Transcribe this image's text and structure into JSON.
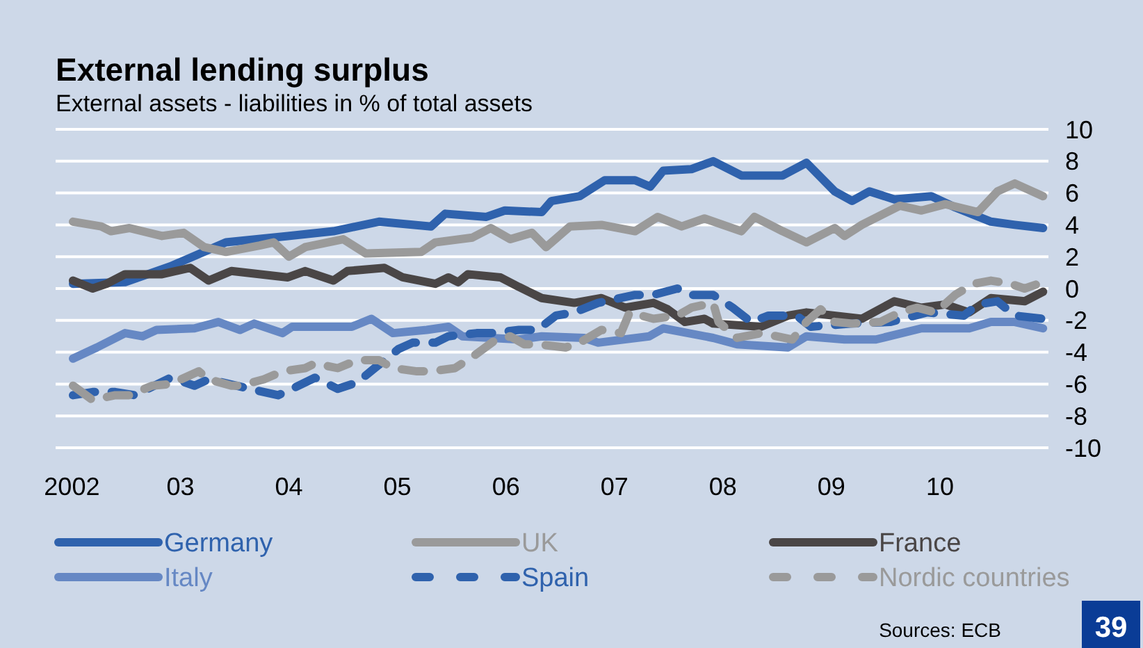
{
  "chart_data": {
    "type": "line",
    "title": "External lending surplus",
    "subtitle": "External assets - liabilities in % of total assets",
    "xlim": [
      2001.85,
      2011
    ],
    "xticks": [
      {
        "value": 2002,
        "label": "2002"
      },
      {
        "value": 2003,
        "label": "03"
      },
      {
        "value": 2004,
        "label": "04"
      },
      {
        "value": 2005,
        "label": "05"
      },
      {
        "value": 2006,
        "label": "06"
      },
      {
        "value": 2007,
        "label": "07"
      },
      {
        "value": 2008,
        "label": "08"
      },
      {
        "value": 2009,
        "label": "09"
      },
      {
        "value": 2010,
        "label": "10"
      }
    ],
    "ylim": [
      -10,
      10
    ],
    "yticks": [
      -10,
      -8,
      -6,
      -4,
      -2,
      0,
      2,
      4,
      6,
      8,
      10
    ],
    "grid": "y",
    "legend": "bottom",
    "marker": "none",
    "annotations": [
      "Sources: ECB",
      "39"
    ],
    "series": [
      {
        "name": "Germany",
        "color": "#2f62ad",
        "line_style": "solid",
        "x": [
          2002.01,
          2002.49,
          2002.91,
          2003.42,
          2003.99,
          2004.41,
          2004.83,
          2005.31,
          2005.44,
          2005.82,
          2005.99,
          2006.33,
          2006.42,
          2006.68,
          2006.91,
          2007.19,
          2007.33,
          2007.45,
          2007.71,
          2007.91,
          2008.17,
          2008.55,
          2008.77,
          2009.03,
          2009.19,
          2009.35,
          2009.58,
          2009.92,
          2010.14,
          2010.47,
          2010.69,
          2010.95
        ],
        "values": [
          0.3,
          0.4,
          1.4,
          2.9,
          3.3,
          3.6,
          4.2,
          3.9,
          4.7,
          4.5,
          4.9,
          4.8,
          5.5,
          5.8,
          6.8,
          6.8,
          6.4,
          7.4,
          7.5,
          8.0,
          7.1,
          7.1,
          7.9,
          6.1,
          5.5,
          6.1,
          5.6,
          5.8,
          5.1,
          4.2,
          4.0,
          3.8
        ]
      },
      {
        "name": "UK",
        "color": "#9a9a9a",
        "line_style": "solid",
        "x": [
          2002.01,
          2002.27,
          2002.36,
          2002.53,
          2002.83,
          2003.03,
          2003.22,
          2003.42,
          2003.73,
          2003.86,
          2004.0,
          2004.15,
          2004.5,
          2004.71,
          2005.22,
          2005.35,
          2005.69,
          2005.86,
          2006.04,
          2006.24,
          2006.37,
          2006.59,
          2006.88,
          2007.19,
          2007.4,
          2007.62,
          2007.83,
          2008.17,
          2008.29,
          2008.55,
          2008.77,
          2009.03,
          2009.12,
          2009.28,
          2009.63,
          2009.83,
          2010.05,
          2010.35,
          2010.53,
          2010.69,
          2010.95
        ],
        "values": [
          4.2,
          3.9,
          3.6,
          3.8,
          3.3,
          3.5,
          2.6,
          2.3,
          2.7,
          2.9,
          2.0,
          2.6,
          3.1,
          2.2,
          2.3,
          2.9,
          3.2,
          3.8,
          3.1,
          3.5,
          2.6,
          3.9,
          4.0,
          3.6,
          4.5,
          3.9,
          4.4,
          3.6,
          4.5,
          3.6,
          2.9,
          3.8,
          3.3,
          4.0,
          5.2,
          4.9,
          5.3,
          4.8,
          6.1,
          6.6,
          5.8
        ]
      },
      {
        "name": "France",
        "color": "#4a4646",
        "line_style": "solid",
        "x": [
          2002.01,
          2002.19,
          2002.32,
          2002.49,
          2002.83,
          2003.09,
          2003.26,
          2003.47,
          2003.99,
          2004.15,
          2004.41,
          2004.54,
          2004.88,
          2005.05,
          2005.35,
          2005.47,
          2005.56,
          2005.65,
          2005.95,
          2006.12,
          2006.33,
          2006.63,
          2006.88,
          2007.1,
          2007.36,
          2007.49,
          2007.65,
          2007.83,
          2007.91,
          2008.35,
          2008.6,
          2008.77,
          2009.28,
          2009.58,
          2009.83,
          2010.05,
          2010.27,
          2010.47,
          2010.78,
          2010.95
        ],
        "values": [
          0.5,
          0.0,
          0.3,
          0.9,
          0.9,
          1.3,
          0.5,
          1.1,
          0.7,
          1.1,
          0.5,
          1.1,
          1.3,
          0.7,
          0.3,
          0.7,
          0.4,
          0.9,
          0.7,
          0.1,
          -0.6,
          -0.9,
          -0.6,
          -1.2,
          -0.9,
          -1.3,
          -2.1,
          -1.9,
          -2.2,
          -2.4,
          -1.7,
          -1.5,
          -1.9,
          -0.8,
          -1.2,
          -1.0,
          -1.5,
          -0.6,
          -0.8,
          -0.2
        ]
      },
      {
        "name": "Italy",
        "color": "#6688c4",
        "line_style": "solid",
        "x": [
          2002.01,
          2002.23,
          2002.49,
          2002.65,
          2002.78,
          2003.13,
          2003.35,
          2003.55,
          2003.68,
          2003.94,
          2004.03,
          2004.58,
          2004.76,
          2004.96,
          2005.27,
          2005.47,
          2005.6,
          2006.12,
          2006.33,
          2006.72,
          2006.85,
          2007.32,
          2007.45,
          2007.91,
          2008.13,
          2008.6,
          2008.77,
          2009.12,
          2009.41,
          2009.83,
          2010.27,
          2010.47,
          2010.69,
          2010.95
        ],
        "values": [
          -4.4,
          -3.7,
          -2.8,
          -3.0,
          -2.6,
          -2.5,
          -2.1,
          -2.6,
          -2.2,
          -2.8,
          -2.4,
          -2.4,
          -1.9,
          -2.8,
          -2.6,
          -2.4,
          -3.0,
          -3.2,
          -3.0,
          -3.1,
          -3.4,
          -3.0,
          -2.5,
          -3.1,
          -3.5,
          -3.7,
          -3.0,
          -3.2,
          -3.2,
          -2.5,
          -2.5,
          -2.1,
          -2.1,
          -2.5
        ]
      },
      {
        "name": "Spain",
        "color": "#2f62ad",
        "line_style": "dashed",
        "x": [
          2002.01,
          2002.19,
          2002.4,
          2002.58,
          2002.91,
          2003.13,
          2003.26,
          2003.64,
          2003.9,
          2004.03,
          2004.24,
          2004.45,
          2004.63,
          2004.79,
          2005.01,
          2005.14,
          2005.35,
          2005.47,
          2005.73,
          2005.86,
          2006.12,
          2006.29,
          2006.46,
          2006.63,
          2006.85,
          2007.19,
          2007.36,
          2007.58,
          2007.71,
          2007.91,
          2008.09,
          2008.26,
          2008.42,
          2008.68,
          2008.81,
          2009.19,
          2009.54,
          2009.88,
          2010.22,
          2010.35,
          2010.53,
          2010.69,
          2010.95
        ],
        "values": [
          -6.7,
          -6.5,
          -6.5,
          -6.7,
          -5.6,
          -6.1,
          -5.7,
          -6.3,
          -6.7,
          -6.3,
          -5.6,
          -6.3,
          -5.9,
          -5.0,
          -3.8,
          -3.4,
          -3.4,
          -3.0,
          -2.8,
          -2.8,
          -2.6,
          -2.6,
          -1.7,
          -1.5,
          -0.9,
          -0.4,
          -0.4,
          0.0,
          -0.4,
          -0.4,
          -1.2,
          -2.1,
          -1.7,
          -1.7,
          -2.4,
          -2.2,
          -2.1,
          -1.5,
          -1.7,
          -1.0,
          -0.8,
          -1.7,
          -1.9
        ]
      },
      {
        "name": "Nordic countries",
        "color": "#9a9a9a",
        "line_style": "dashed",
        "x": [
          2002.01,
          2002.19,
          2002.4,
          2002.53,
          2002.74,
          2002.91,
          2003.17,
          2003.26,
          2003.47,
          2003.55,
          2003.77,
          2003.94,
          2004.15,
          2004.24,
          2004.45,
          2004.63,
          2004.83,
          2004.96,
          2005.18,
          2005.31,
          2005.53,
          2005.69,
          2005.91,
          2006.04,
          2006.17,
          2006.29,
          2006.55,
          2006.68,
          2006.88,
          2007.06,
          2007.14,
          2007.36,
          2007.58,
          2007.71,
          2007.91,
          2007.96,
          2008.13,
          2008.35,
          2008.64,
          2008.77,
          2008.9,
          2009.03,
          2009.19,
          2009.45,
          2009.63,
          2009.79,
          2009.96,
          2010.14,
          2010.31,
          2010.47,
          2010.65,
          2010.78,
          2010.95
        ],
        "values": [
          -6.1,
          -7.0,
          -6.7,
          -6.7,
          -6.1,
          -6.0,
          -5.2,
          -5.7,
          -6.1,
          -6.1,
          -5.7,
          -5.2,
          -5.0,
          -4.7,
          -5.0,
          -4.5,
          -4.5,
          -5.0,
          -5.2,
          -5.2,
          -5.0,
          -4.3,
          -3.2,
          -3.0,
          -3.5,
          -3.5,
          -3.7,
          -3.4,
          -2.6,
          -2.8,
          -1.5,
          -1.9,
          -1.7,
          -1.2,
          -0.9,
          -2.1,
          -3.1,
          -2.8,
          -3.2,
          -2.1,
          -1.3,
          -2.1,
          -2.2,
          -2.1,
          -1.5,
          -1.2,
          -1.5,
          -0.4,
          0.3,
          0.5,
          0.3,
          0.0,
          0.4
        ]
      }
    ]
  }
}
